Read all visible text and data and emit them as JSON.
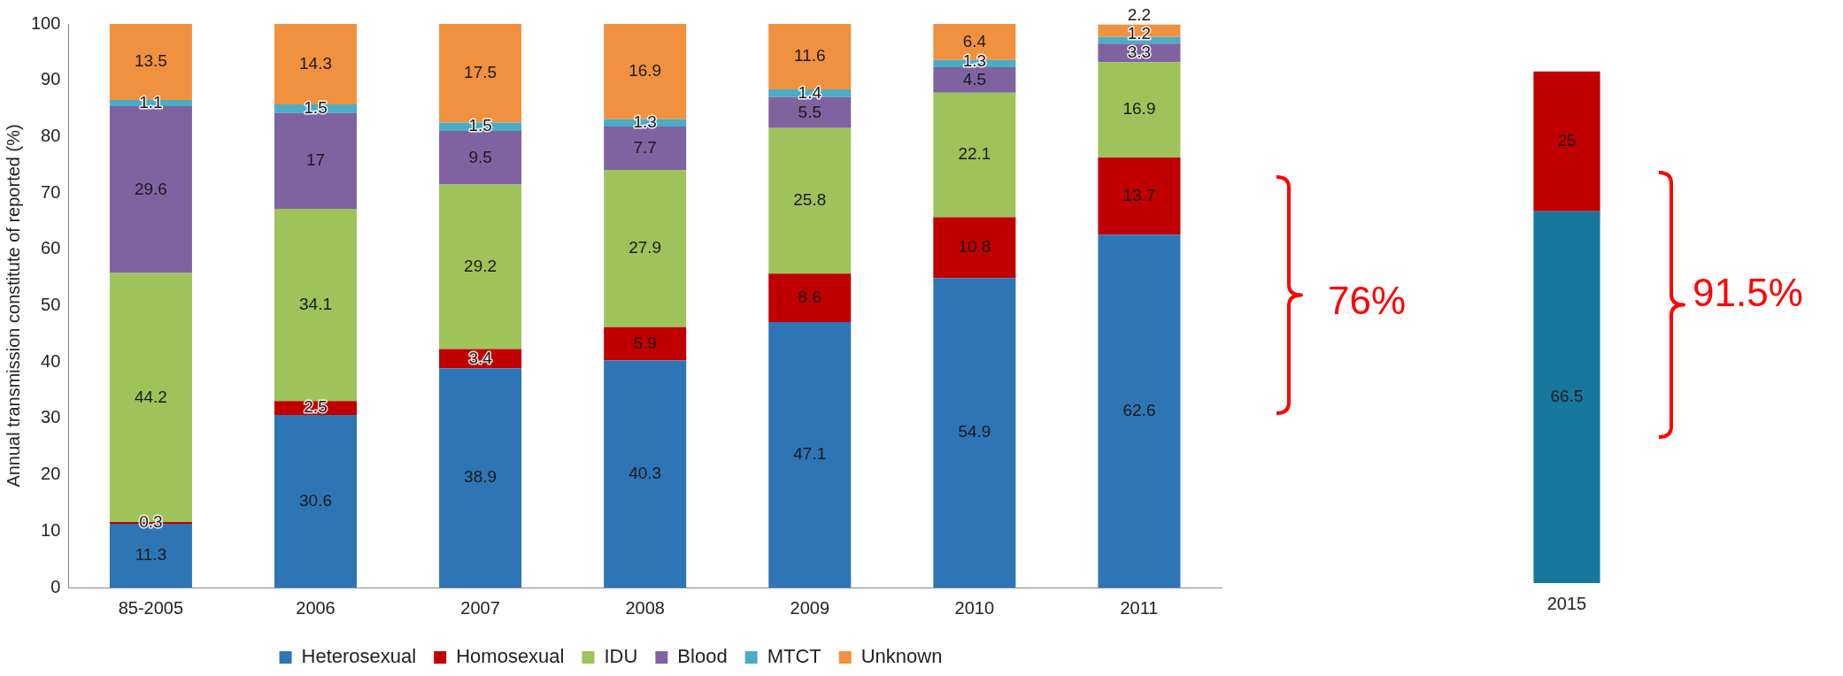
{
  "chart_data": [
    {
      "type": "bar",
      "stacked": true,
      "ylabel": "Annual transmission constitute of reported (%)",
      "categories": [
        "85-2005",
        "2006",
        "2007",
        "2008",
        "2009",
        "2010",
        "2011"
      ],
      "ylim": [
        0,
        100
      ],
      "yticks": [
        0,
        10,
        20,
        30,
        40,
        50,
        60,
        70,
        80,
        90,
        100
      ],
      "grid": false,
      "legend": "bottom",
      "data_labels": true,
      "annotations": [
        "76%"
      ],
      "series": [
        {
          "name": "Heterosexual",
          "color": "#2e75b6",
          "values": [
            11.3,
            30.6,
            38.9,
            40.3,
            47.1,
            54.9,
            62.6
          ]
        },
        {
          "name": "Homosexual",
          "color": "#c00000",
          "values": [
            0.3,
            2.5,
            3.4,
            5.9,
            8.6,
            10.8,
            13.7
          ]
        },
        {
          "name": "IDU",
          "color": "#9dc35a",
          "values": [
            44.2,
            34.1,
            29.2,
            27.9,
            25.8,
            22.1,
            16.9
          ]
        },
        {
          "name": "Blood",
          "color": "#7f63a1",
          "values": [
            29.6,
            17,
            9.5,
            7.7,
            5.5,
            4.5,
            3.3
          ]
        },
        {
          "name": "MTCT",
          "color": "#4bacc6",
          "values": [
            1.1,
            1.5,
            1.5,
            1.3,
            1.4,
            1.3,
            1.2
          ]
        },
        {
          "name": "Unknown",
          "color": "#f0913f",
          "values": [
            13.5,
            14.3,
            17.5,
            16.9,
            11.6,
            6.4,
            2.2
          ]
        }
      ]
    },
    {
      "type": "bar",
      "stacked": true,
      "categories": [
        "2015"
      ],
      "ylim": [
        0,
        100
      ],
      "tick_labels": "x",
      "grid": false,
      "data_labels": true,
      "annotations": [
        "91.5%"
      ],
      "series": [
        {
          "color": "#17789e",
          "values": [
            66.5
          ]
        },
        {
          "color": "#c00000",
          "values": [
            25
          ]
        }
      ]
    }
  ]
}
